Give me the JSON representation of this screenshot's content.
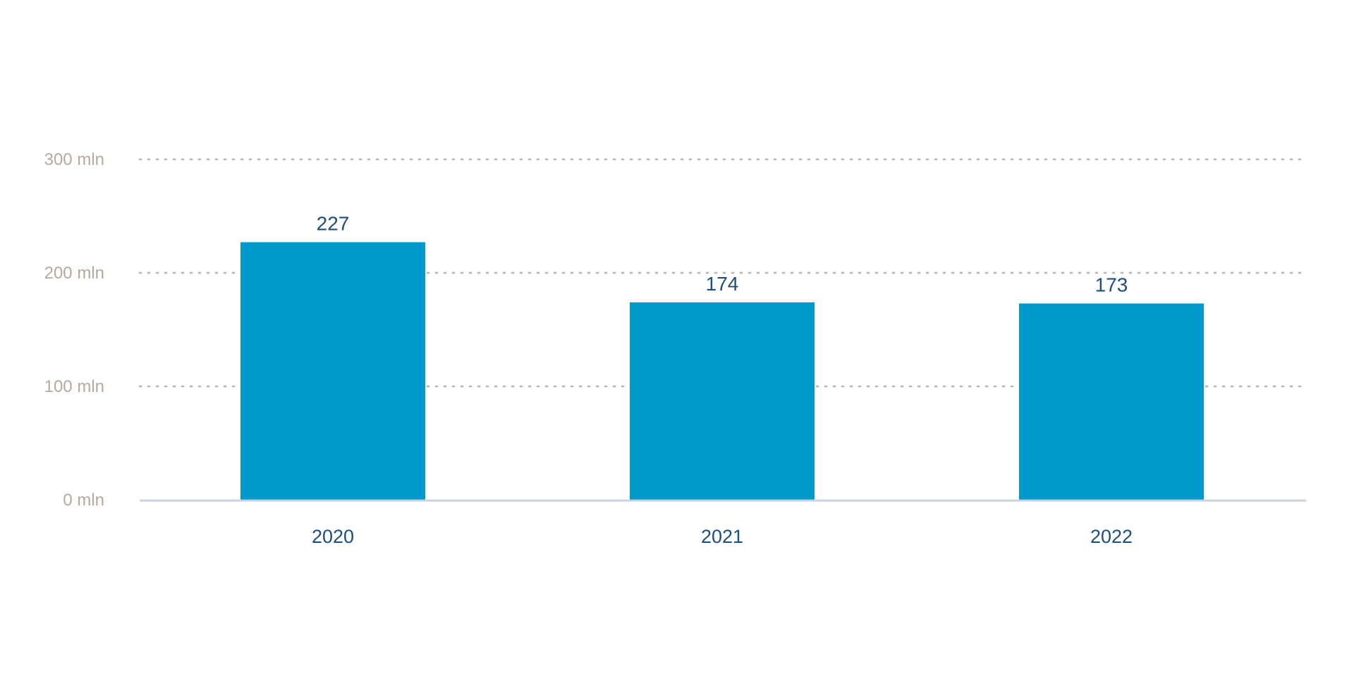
{
  "chart_data": {
    "type": "bar",
    "categories": [
      "2020",
      "2021",
      "2022"
    ],
    "values": [
      227,
      174,
      173
    ],
    "data_labels": [
      "227",
      "174",
      "173"
    ],
    "title": "",
    "xlabel": "",
    "ylabel": "",
    "ylim": [
      0,
      300
    ],
    "yticks": [
      0,
      100,
      200,
      300
    ],
    "ytick_labels": [
      "0 mln",
      "100 mln",
      "200 mln",
      "300 mln"
    ],
    "grid": true,
    "legend": "none",
    "colors": {
      "bar": "#0099cc",
      "data_label": "#1f4e79",
      "category_label": "#1f4e79",
      "tick_label": "#b5aaa0",
      "gridline": "#b3b3b3",
      "baseline": "#c8d3e6"
    }
  }
}
